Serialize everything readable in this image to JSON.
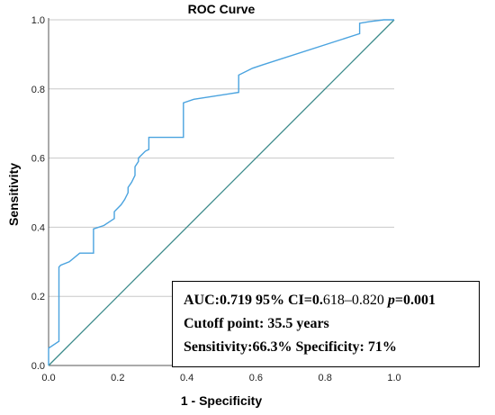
{
  "chart_data": {
    "type": "line",
    "title": "ROC Curve",
    "xlabel": "1 - Specificity",
    "ylabel": "Sensitivity",
    "xlim": [
      0,
      1
    ],
    "ylim": [
      0,
      1
    ],
    "x_ticks": [
      "0.0",
      "0.2",
      "0.4",
      "0.6",
      "0.8",
      "1.0"
    ],
    "y_ticks": [
      "0.0",
      "0.2",
      "0.4",
      "0.6",
      "0.8",
      "1.0"
    ],
    "grid": "horizontal",
    "colors": {
      "roc": "#4aa3df",
      "reference": "#3a8a8a",
      "grid": "#c8c8c8"
    },
    "series": [
      {
        "x": [
          0.0,
          0.0,
          0.03,
          0.03,
          0.035,
          0.06,
          0.09,
          0.13,
          0.13,
          0.16,
          0.19,
          0.19,
          0.21,
          0.22,
          0.23,
          0.23,
          0.24,
          0.25,
          0.25,
          0.26,
          0.26,
          0.28,
          0.29,
          0.29,
          0.39,
          0.39,
          0.42,
          0.55,
          0.55,
          0.59,
          0.62,
          0.9,
          0.9,
          0.93,
          0.97,
          1.0
        ],
        "y": [
          0.0,
          0.05,
          0.07,
          0.285,
          0.29,
          0.3,
          0.325,
          0.325,
          0.395,
          0.405,
          0.425,
          0.445,
          0.465,
          0.48,
          0.5,
          0.515,
          0.53,
          0.55,
          0.575,
          0.59,
          0.6,
          0.62,
          0.625,
          0.66,
          0.66,
          0.76,
          0.77,
          0.79,
          0.84,
          0.86,
          0.87,
          0.96,
          0.99,
          0.995,
          1.0,
          1.0
        ]
      },
      {
        "x": [
          0,
          1
        ],
        "y": [
          0,
          1
        ]
      }
    ]
  },
  "stats": {
    "auc_label": "AUC:",
    "auc_value": "0.719",
    "ci_label": " 95% CI=0.",
    "ci_range": "618–0.820",
    "p_label": "p",
    "p_value": "=0.001",
    "cutoff": "Cutoff point: 35.5 years",
    "sens_spec": "Sensitivity:66.3% Specificity: 71%"
  }
}
